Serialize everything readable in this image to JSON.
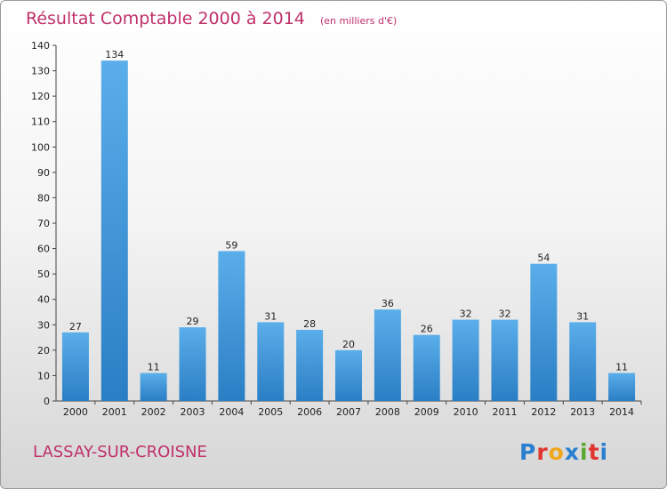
{
  "chart_data": {
    "type": "bar",
    "title": "Résultat Comptable 2000 à 2014",
    "subtitle": "(en milliers d'€)",
    "categories": [
      "2000",
      "2001",
      "2002",
      "2003",
      "2004",
      "2005",
      "2006",
      "2007",
      "2008",
      "2009",
      "2010",
      "2011",
      "2012",
      "2013",
      "2014"
    ],
    "values": [
      27,
      134,
      11,
      29,
      59,
      31,
      28,
      20,
      36,
      26,
      32,
      32,
      54,
      31,
      11
    ],
    "ylim": [
      0,
      140
    ],
    "yticks": [
      0,
      10,
      20,
      30,
      40,
      50,
      60,
      70,
      80,
      90,
      100,
      110,
      120,
      130,
      140
    ],
    "xlabel": "",
    "ylabel": "",
    "grid": false,
    "legend": "none"
  },
  "commune": "LASSAY-SUR-CROISNE",
  "logo": {
    "text": "Proxiti",
    "letters": [
      {
        "ch": "P",
        "color": "#2a7fd0"
      },
      {
        "ch": "r",
        "color": "#e0342f"
      },
      {
        "ch": "o",
        "color": "#f0a81c"
      },
      {
        "ch": "x",
        "color": "#2a7fd0"
      },
      {
        "ch": "i",
        "color": "#5aa832"
      },
      {
        "ch": "t",
        "color": "#e0342f"
      },
      {
        "ch": "i",
        "color": "#2a7fd0"
      }
    ]
  },
  "colors": {
    "bar_top": "#5aaeea",
    "bar_bottom": "#2a7ec4",
    "accent": "#c0306a",
    "axis": "#444444"
  }
}
